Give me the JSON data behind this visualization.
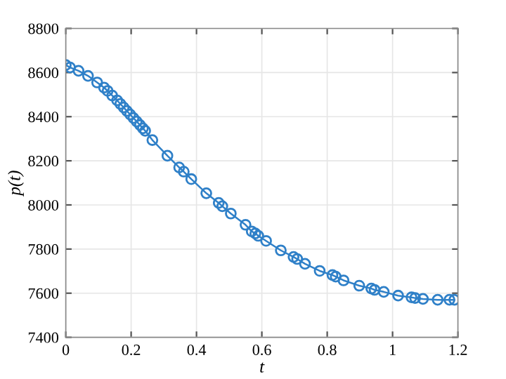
{
  "chart_data": {
    "type": "line",
    "xlabel": "t",
    "ylabel": "p(t)",
    "series": [
      {
        "color": "#2f80c8",
        "x": [
          0,
          0.013,
          0.039,
          0.068,
          0.096,
          0.117,
          0.128,
          0.142,
          0.157,
          0.167,
          0.177,
          0.187,
          0.197,
          0.207,
          0.217,
          0.227,
          0.236,
          0.243,
          0.265,
          0.311,
          0.347,
          0.361,
          0.384,
          0.43,
          0.468,
          0.479,
          0.505,
          0.55,
          0.569,
          0.58,
          0.589,
          0.613,
          0.658,
          0.697,
          0.708,
          0.732,
          0.777,
          0.816,
          0.826,
          0.85,
          0.898,
          0.935,
          0.945,
          0.973,
          1.017,
          1.058,
          1.069,
          1.093,
          1.138,
          1.174,
          1.189
        ],
        "values": [
          8634,
          8623,
          8608,
          8585,
          8555,
          8532,
          8517,
          8496,
          8474,
          8458,
          8442,
          8426,
          8410,
          8394,
          8378,
          8362,
          8347,
          8336,
          8294,
          8223,
          8170,
          8151,
          8117,
          8053,
          8009,
          7994,
          7961,
          7910,
          7880,
          7871,
          7860,
          7837,
          7794,
          7764,
          7755,
          7733,
          7701,
          7682,
          7675,
          7658,
          7634,
          7621,
          7615,
          7606,
          7589,
          7581,
          7578,
          7574,
          7570,
          7570,
          7570
        ]
      }
    ],
    "xlim": [
      0,
      1.2
    ],
    "xticks": [
      0,
      0.2,
      0.4,
      0.6,
      0.8,
      1,
      1.2
    ],
    "ylim": [
      7400,
      8800
    ],
    "yticks": [
      7400,
      7600,
      7800,
      8000,
      8200,
      8400,
      8600,
      8800
    ],
    "grid": true,
    "marker": "circle",
    "line_style": "solid"
  }
}
